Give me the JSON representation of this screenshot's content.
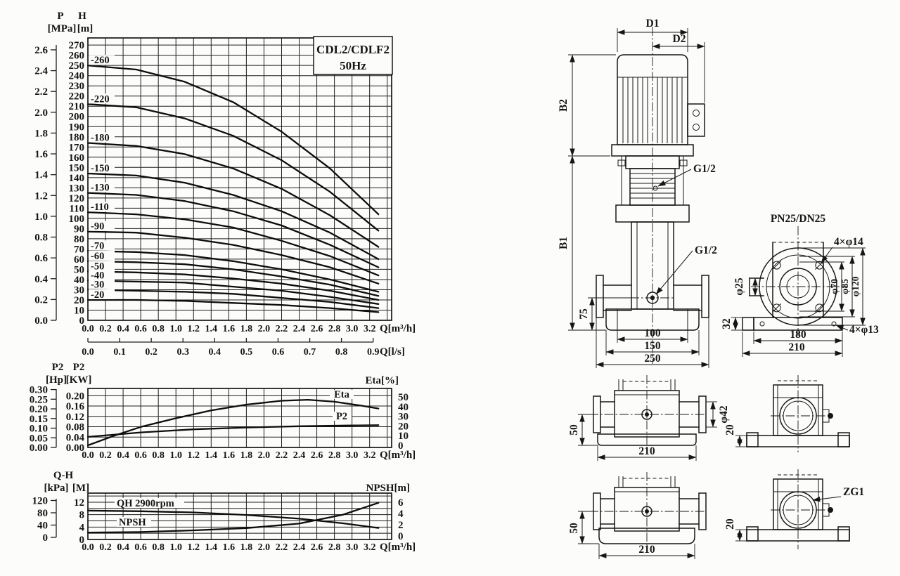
{
  "page": {
    "background": "#fcfcfa",
    "ink": "#161616"
  },
  "chart_data": [
    {
      "type": "line",
      "title": "CDL2/CDLF2",
      "subtitle": "50Hz",
      "p_axis": {
        "name": "P",
        "unit": "[MPa]",
        "min": 0,
        "max": 2.6,
        "step": 0.2
      },
      "h_axis": {
        "name": "H",
        "unit": "[m]",
        "min": 0,
        "max": 270,
        "step": 10
      },
      "x_axis": {
        "label": "Q[m³/h]",
        "min": 0,
        "max": 3.2,
        "step": 0.2
      },
      "x_axis_secondary": {
        "label": "Q[l/s]",
        "min": 0,
        "max": 0.9,
        "step": 0.1,
        "m3h_per_ls": 3.6
      },
      "xlim": [
        0,
        3.45
      ],
      "ylim": [
        0,
        277
      ],
      "grid": true,
      "series": [
        {
          "name": "-260",
          "points": [
            [
              0,
              250
            ],
            [
              0.55,
              246
            ],
            [
              1.1,
              234
            ],
            [
              1.65,
              214
            ],
            [
              2.2,
              185
            ],
            [
              2.75,
              149
            ],
            [
              3.3,
              104
            ]
          ]
        },
        {
          "name": "-220",
          "points": [
            [
              0,
              212
            ],
            [
              0.55,
              209
            ],
            [
              1.1,
              198
            ],
            [
              1.65,
              181
            ],
            [
              2.2,
              157
            ],
            [
              2.75,
              126
            ],
            [
              3.3,
              88
            ]
          ]
        },
        {
          "name": "-180",
          "points": [
            [
              0,
              174
            ],
            [
              0.55,
              171
            ],
            [
              1.1,
              163
            ],
            [
              1.65,
              149
            ],
            [
              2.2,
              129
            ],
            [
              2.75,
              103
            ],
            [
              3.3,
              72
            ]
          ]
        },
        {
          "name": "-150",
          "points": [
            [
              0,
              144
            ],
            [
              0.55,
              142
            ],
            [
              1.1,
              135
            ],
            [
              1.65,
              123
            ],
            [
              2.2,
              107
            ],
            [
              2.75,
              86
            ],
            [
              3.3,
              60
            ]
          ]
        },
        {
          "name": "-130",
          "points": [
            [
              0,
              125
            ],
            [
              0.55,
              123
            ],
            [
              1.1,
              117
            ],
            [
              1.65,
              107
            ],
            [
              2.2,
              93
            ],
            [
              2.75,
              74
            ],
            [
              3.3,
              52
            ]
          ]
        },
        {
          "name": "-110",
          "points": [
            [
              0,
              106
            ],
            [
              0.55,
              104
            ],
            [
              1.1,
              99
            ],
            [
              1.65,
              91
            ],
            [
              2.2,
              78
            ],
            [
              2.75,
              63
            ],
            [
              3.3,
              44
            ]
          ]
        },
        {
          "name": "-90",
          "points": [
            [
              0,
              87
            ],
            [
              0.55,
              86
            ],
            [
              1.1,
              81
            ],
            [
              1.65,
              74
            ],
            [
              2.2,
              64
            ],
            [
              2.75,
              52
            ],
            [
              3.3,
              36
            ]
          ]
        },
        {
          "name": "-70",
          "points": [
            [
              0,
              68
            ],
            [
              0.55,
              67
            ],
            [
              1.1,
              64
            ],
            [
              1.65,
              58
            ],
            [
              2.2,
              50
            ],
            [
              2.75,
              40
            ],
            [
              3.3,
              28
            ]
          ]
        },
        {
          "name": "-60",
          "points": [
            [
              0,
              58
            ],
            [
              0.55,
              57
            ],
            [
              1.1,
              55
            ],
            [
              1.65,
              50
            ],
            [
              2.2,
              43
            ],
            [
              2.75,
              35
            ],
            [
              3.3,
              24
            ]
          ]
        },
        {
          "name": "-50",
          "points": [
            [
              0,
              48
            ],
            [
              0.55,
              47
            ],
            [
              1.1,
              45
            ],
            [
              1.65,
              41
            ],
            [
              2.2,
              36
            ],
            [
              2.75,
              29
            ],
            [
              3.3,
              20
            ]
          ]
        },
        {
          "name": "-40",
          "points": [
            [
              0,
              39
            ],
            [
              0.55,
              38
            ],
            [
              1.1,
              37
            ],
            [
              1.65,
              33
            ],
            [
              2.2,
              29
            ],
            [
              2.75,
              23
            ],
            [
              3.3,
              16
            ]
          ]
        },
        {
          "name": "-30",
          "points": [
            [
              0,
              30
            ],
            [
              0.55,
              29
            ],
            [
              1.1,
              28
            ],
            [
              1.65,
              26
            ],
            [
              2.2,
              22
            ],
            [
              2.75,
              18
            ],
            [
              3.3,
              12
            ]
          ]
        },
        {
          "name": "-20",
          "points": [
            [
              0,
              20
            ],
            [
              0.55,
              20
            ],
            [
              1.1,
              19
            ],
            [
              1.65,
              17
            ],
            [
              2.2,
              15
            ],
            [
              2.75,
              12
            ],
            [
              3.3,
              8
            ]
          ]
        }
      ]
    },
    {
      "type": "line",
      "hp_axis": {
        "name": "P2",
        "unit": "[Hp]",
        "min": 0,
        "max": 0.3,
        "step": 0.05
      },
      "kw_axis": {
        "name": "P2",
        "unit": "[KW]",
        "min": 0,
        "max": 0.2,
        "step": 0.04
      },
      "eta_axis": {
        "label": "Eta[%]",
        "min": 0,
        "max": 50,
        "step": 10
      },
      "x_axis": {
        "label": "Q[m³/h]",
        "min": 0,
        "max": 3.2,
        "step": 0.2
      },
      "xlim": [
        0,
        3.45
      ],
      "ylim_kw": [
        0,
        0.228
      ],
      "grid": true,
      "series": [
        {
          "name": "Eta",
          "axis": "eta",
          "points": [
            [
              0,
              0
            ],
            [
              0.3,
              10
            ],
            [
              0.6,
              19
            ],
            [
              1.0,
              28
            ],
            [
              1.4,
              36
            ],
            [
              1.8,
              42
            ],
            [
              2.2,
              46
            ],
            [
              2.5,
              47
            ],
            [
              2.8,
              45
            ],
            [
              3.1,
              41
            ],
            [
              3.3,
              38
            ]
          ]
        },
        {
          "name": "P2",
          "axis": "kw",
          "points": [
            [
              0,
              0.041
            ],
            [
              0.6,
              0.058
            ],
            [
              1.2,
              0.07
            ],
            [
              1.8,
              0.077
            ],
            [
              2.4,
              0.082
            ],
            [
              3.0,
              0.085
            ],
            [
              3.3,
              0.086
            ]
          ]
        }
      ]
    },
    {
      "type": "line",
      "left_title": "Q-H",
      "kpa_axis": {
        "unit": "[kPa]",
        "min": 0,
        "max": 120,
        "step": 40
      },
      "m_axis": {
        "unit": "[M]",
        "min": 0,
        "max": 12,
        "step": 4
      },
      "npsh_axis": {
        "label": "NPSH[m]",
        "min": 0,
        "max": 6,
        "step": 2
      },
      "x_axis": {
        "label": "Q[m³/h]",
        "min": 0,
        "max": 3.2,
        "step": 0.2
      },
      "xlim": [
        0,
        3.45
      ],
      "ylim_m": [
        0,
        14.9
      ],
      "grid": true,
      "series": [
        {
          "name": "QH 2900rpm",
          "axis": "m",
          "points": [
            [
              0,
              9.3
            ],
            [
              0.6,
              9.1
            ],
            [
              1.2,
              8.7
            ],
            [
              1.8,
              7.9
            ],
            [
              2.4,
              6.7
            ],
            [
              2.9,
              5.2
            ],
            [
              3.3,
              3.7
            ]
          ]
        },
        {
          "name": "NPSH",
          "axis": "npsh",
          "points": [
            [
              0,
              0.6
            ],
            [
              0.6,
              0.7
            ],
            [
              1.2,
              1.0
            ],
            [
              1.8,
              1.4
            ],
            [
              2.4,
              2.2
            ],
            [
              2.9,
              3.8
            ],
            [
              3.3,
              5.9
            ]
          ]
        }
      ]
    }
  ],
  "drawings": {
    "pump_front": {
      "d1": "D1",
      "d2": "D2",
      "b2": "B2",
      "b1": "B1",
      "port_top": "G1/2",
      "port_side": "G1/2",
      "dim_75": "75",
      "dim_100": "100",
      "dim_150": "150",
      "dim_250": "250"
    },
    "flange_view": {
      "title": "PN25/DN25",
      "bolt_top": "4×φ14",
      "bore": "φ25",
      "dia_70": "φ70",
      "dia_85": "φ85",
      "dia_120": "φ120",
      "dim_32": "32",
      "dim_180": "180",
      "dim_210": "210",
      "bolt_base": "4×φ13"
    },
    "mid_left_view": {
      "dim_50": "50",
      "dim_210": "210",
      "dia_42": "φ42"
    },
    "mid_right_view": {
      "dim_20": "20"
    },
    "bot_left_view": {
      "dim_50": "50",
      "dim_210": "210"
    },
    "bot_right_view": {
      "thread": "ZG1",
      "dim_20": "20"
    }
  }
}
